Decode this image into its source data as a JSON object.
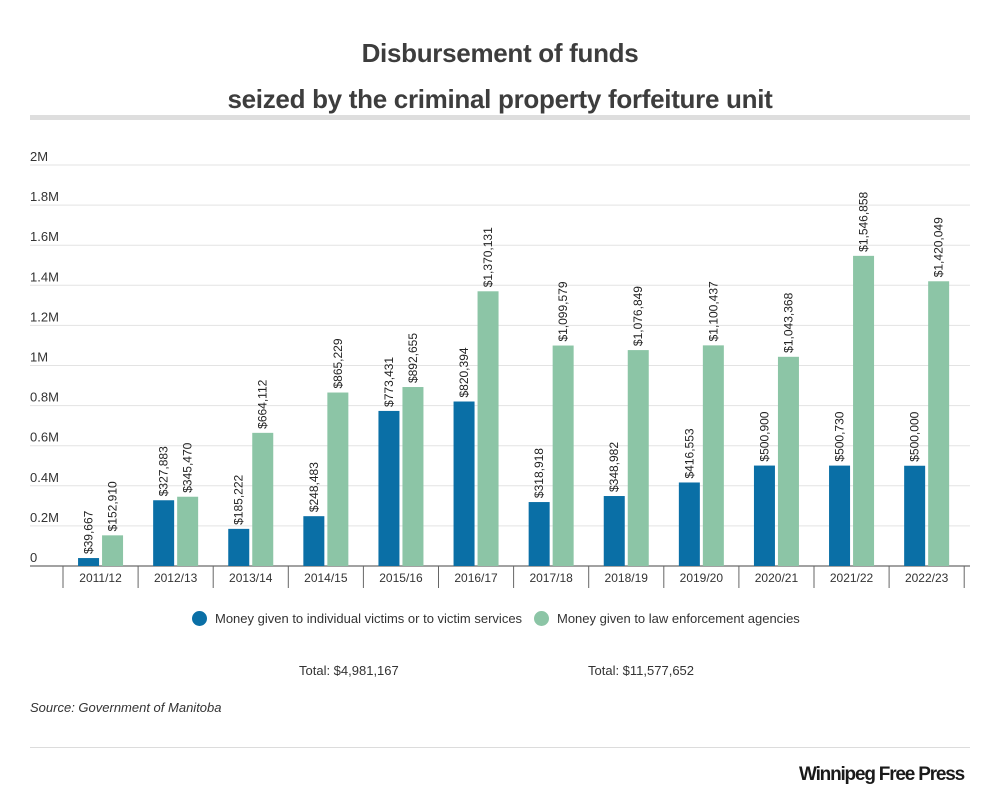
{
  "chart_data": {
    "type": "bar",
    "title_lines": [
      "Disbursement of funds",
      "seized by the criminal property forfeiture unit"
    ],
    "categories": [
      "2011/12",
      "2012/13",
      "2013/14",
      "2014/15",
      "2015/16",
      "2016/17",
      "2017/18",
      "2018/19",
      "2019/20",
      "2020/21",
      "2021/22",
      "2022/23"
    ],
    "series": [
      {
        "name": "Money given to individual victims or to victim services",
        "color": "#0a6fa6",
        "values": [
          39667,
          327883,
          185222,
          248483,
          773431,
          820394,
          318918,
          348982,
          416553,
          500900,
          500730,
          500000
        ],
        "labels": [
          "$39,667",
          "$327,883",
          "$185,222",
          "$248,483",
          "$773,431",
          "$820,394",
          "$318,918",
          "$348,982",
          "$416,553",
          "$500,900",
          "$500,730",
          "$500,000"
        ]
      },
      {
        "name": "Money given to law enforcement agencies",
        "color": "#8cc5a6",
        "values": [
          152910,
          345470,
          664112,
          865229,
          892655,
          1370131,
          1099579,
          1076849,
          1100437,
          1043368,
          1546858,
          1420049
        ],
        "labels": [
          "$152,910",
          "$345,470",
          "$664,112",
          "$865,229",
          "$892,655",
          "$1,370,131",
          "$1,099,579",
          "$1,076,849",
          "$1,100,437",
          "$1,043,368",
          "$1,546,858",
          "$1,420,049"
        ]
      }
    ],
    "ylim": [
      0,
      2000000
    ],
    "yticks": [
      0,
      200000,
      400000,
      600000,
      800000,
      1000000,
      1200000,
      1400000,
      1600000,
      1800000,
      2000000
    ],
    "ytick_labels": [
      "0",
      "0.2M",
      "0.4M",
      "0.6M",
      "0.8M",
      "1M",
      "1.2M",
      "1.4M",
      "1.6M",
      "1.8M",
      "2M"
    ],
    "grid": true,
    "legend_position": "bottom",
    "totals": [
      "Total: $4,981,167",
      "Total: $11,577,652"
    ]
  },
  "source": "Source: Government of Manitoba",
  "logo_text": "Winnipeg Free Press"
}
